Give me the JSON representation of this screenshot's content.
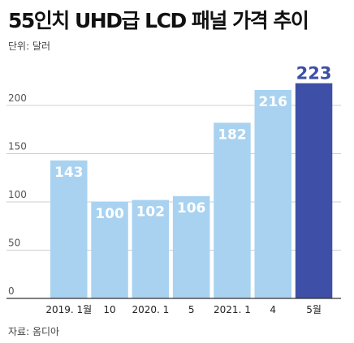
{
  "title": "55인치 UHD급 LCD 패널 가격 추이",
  "unit_text": "단위: 달러",
  "source_text": "자료: 옴디아",
  "colors": {
    "bar": "#a8d2f0",
    "highlight": "#3d4fa6",
    "grid": "#cfcfcf",
    "axis": "#333333"
  },
  "chart_data": {
    "type": "bar",
    "categories": [
      "2019. 1월",
      "10",
      "2020. 1",
      "5",
      "2021. 1",
      "4",
      "5월"
    ],
    "values": [
      143,
      100,
      102,
      106,
      182,
      216,
      223
    ],
    "highlight_index": 6,
    "ylim": [
      0,
      250
    ],
    "yticks": [
      0,
      50,
      100,
      150,
      200
    ],
    "grid": true,
    "xlabel": "",
    "ylabel": ""
  }
}
